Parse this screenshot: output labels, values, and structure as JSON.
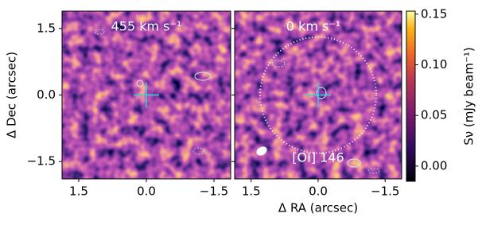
{
  "chart_data": [
    {
      "type": "image",
      "annotation": "455 km s⁻¹",
      "ylabel": "Δ Dec (arcsec)",
      "xlim": [
        1.87,
        -1.87
      ],
      "ylim": [
        -1.89,
        1.89
      ],
      "xticks": [
        1.5,
        {
          "value": 0,
          "label": "0.0"
        },
        {
          "value": -1.5,
          "label": "−1.5"
        }
      ],
      "yticks": [
        1.5,
        {
          "value": 0,
          "label": "0.0"
        },
        {
          "value": -1.5,
          "label": "−1.5"
        }
      ],
      "crosshair": [
        0,
        0
      ]
    },
    {
      "type": "image",
      "annotation": "0 km s⁻¹",
      "label": "[OI] 146",
      "xlabel": "Δ RA (arcsec)",
      "xlim": [
        1.87,
        -1.87
      ],
      "ylim": [
        -1.89,
        1.89
      ],
      "xticks": [
        1.5,
        {
          "value": 0,
          "label": "0.0"
        },
        {
          "value": -1.5,
          "label": "−1.5"
        }
      ],
      "crosshair": [
        0,
        0
      ],
      "circle_radius": 1.3
    },
    {
      "type": "colorbar",
      "label": "Sν (mJy beam⁻¹)",
      "clim": [
        -0.015,
        0.153
      ],
      "ticks": [
        {
          "value": 0,
          "label": "0.00"
        },
        0.05,
        {
          "value": 0.1,
          "label": "0.10"
        },
        0.15
      ]
    }
  ]
}
